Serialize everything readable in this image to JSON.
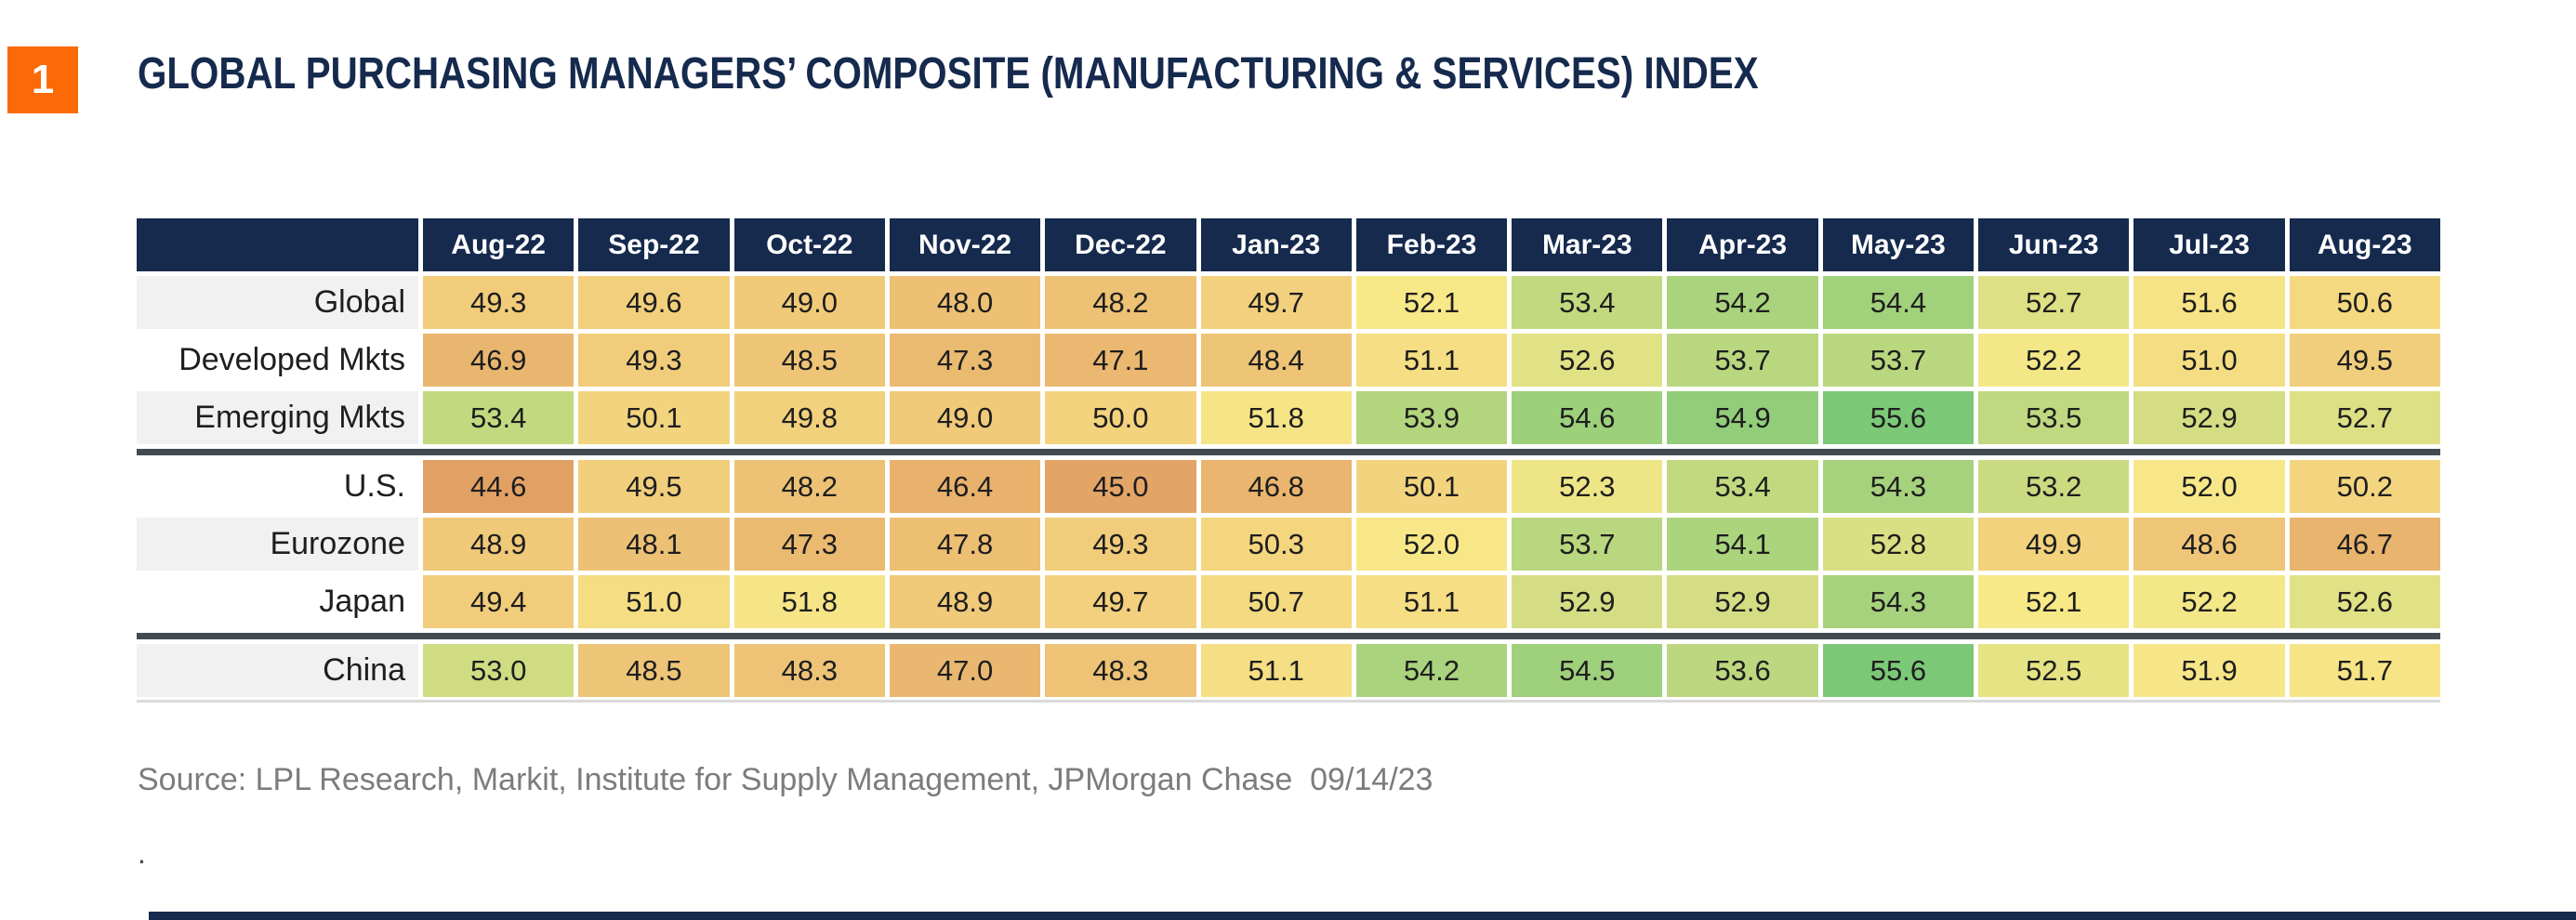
{
  "page": {
    "badge": "1",
    "title": "GLOBAL PURCHASING MANAGERS’ COMPOSITE (MANUFACTURING & SERVICES) INDEX",
    "source": "Source: LPL Research, Markit, Institute for Supply Management, JPMorgan Chase  09/14/23",
    "footnote": "."
  },
  "colors": {
    "accent_orange": "#FB6A07",
    "navy": "#152A4D",
    "divider_dark": "#444A52",
    "row_alt_bg": "#F1F1F2",
    "source_gray": "#7C7C7C",
    "cell_text": "#1E1E1E",
    "bottom_rule": "#DADADA",
    "heatmap_stops": [
      [
        44.6,
        "#E2A164"
      ],
      [
        50.0,
        "#F3D37E"
      ],
      [
        52.1,
        "#F7E888"
      ],
      [
        53.0,
        "#D0DC82"
      ],
      [
        55.6,
        "#7BC877"
      ]
    ]
  },
  "chart_data": {
    "type": "heatmap",
    "title": "GLOBAL PURCHASING MANAGERS’ COMPOSITE (MANUFACTURING & SERVICES) INDEX",
    "columns": [
      "Aug-22",
      "Sep-22",
      "Oct-22",
      "Nov-22",
      "Dec-22",
      "Jan-23",
      "Feb-23",
      "Mar-23",
      "Apr-23",
      "May-23",
      "Jun-23",
      "Jul-23",
      "Aug-23"
    ],
    "rows": [
      {
        "label": "Global",
        "values": [
          49.3,
          49.6,
          49.0,
          48.0,
          48.2,
          49.7,
          52.1,
          53.4,
          54.2,
          54.4,
          52.7,
          51.6,
          50.6
        ]
      },
      {
        "label": "Developed Mkts",
        "values": [
          46.9,
          49.3,
          48.5,
          47.3,
          47.1,
          48.4,
          51.1,
          52.6,
          53.7,
          53.7,
          52.2,
          51.0,
          49.5
        ]
      },
      {
        "label": "Emerging Mkts",
        "values": [
          53.4,
          50.1,
          49.8,
          49.0,
          50.0,
          51.8,
          53.9,
          54.6,
          54.9,
          55.6,
          53.5,
          52.9,
          52.7
        ]
      },
      {
        "label": "U.S.",
        "values": [
          44.6,
          49.5,
          48.2,
          46.4,
          45.0,
          46.8,
          50.1,
          52.3,
          53.4,
          54.3,
          53.2,
          52.0,
          50.2
        ]
      },
      {
        "label": "Eurozone",
        "values": [
          48.9,
          48.1,
          47.3,
          47.8,
          49.3,
          50.3,
          52.0,
          53.7,
          54.1,
          52.8,
          49.9,
          48.6,
          46.7
        ]
      },
      {
        "label": "Japan",
        "values": [
          49.4,
          51.0,
          51.8,
          48.9,
          49.7,
          50.7,
          51.1,
          52.9,
          52.9,
          54.3,
          52.1,
          52.2,
          52.6
        ]
      },
      {
        "label": "China",
        "values": [
          53.0,
          48.5,
          48.3,
          47.0,
          48.3,
          51.1,
          54.2,
          54.5,
          53.6,
          55.6,
          52.5,
          51.9,
          51.7
        ]
      }
    ],
    "group_dividers_after": [
      "Emerging Mkts",
      "Japan"
    ],
    "value_range": [
      44.6,
      55.6
    ],
    "legend_position": "none",
    "grid": "white cell gaps",
    "color_scale_description": "orange (low) through yellow (neutral ~50) to green (high)"
  }
}
